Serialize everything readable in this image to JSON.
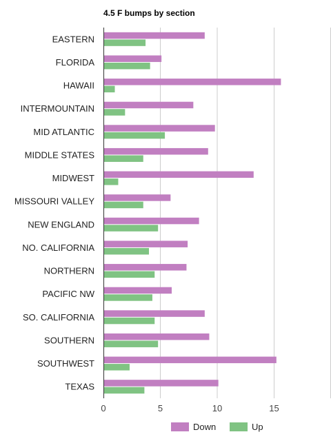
{
  "chart_data": {
    "type": "bar",
    "orientation": "horizontal",
    "title": "4.5 F bumps by section",
    "xlabel": "",
    "ylabel": "",
    "xlim": [
      0,
      20
    ],
    "xticks": [
      0,
      5,
      10,
      15
    ],
    "grid": true,
    "legend_position": "bottom",
    "categories": [
      "EASTERN",
      "FLORIDA",
      "HAWAII",
      "INTERMOUNTAIN",
      "MID ATLANTIC",
      "MIDDLE STATES",
      "MIDWEST",
      "MISSOURI VALLEY",
      "NEW ENGLAND",
      "NO. CALIFORNIA",
      "NORTHERN",
      "PACIFIC NW",
      "SO. CALIFORNIA",
      "SOUTHERN",
      "SOUTHWEST",
      "TEXAS"
    ],
    "series": [
      {
        "name": "Down",
        "color": "#c17fc1",
        "values": [
          8.9,
          5.1,
          15.6,
          7.9,
          9.8,
          9.2,
          13.2,
          5.9,
          8.4,
          7.4,
          7.3,
          6.0,
          8.9,
          9.3,
          15.2,
          10.1
        ]
      },
      {
        "name": "Up",
        "color": "#80c383",
        "values": [
          3.7,
          4.1,
          1.0,
          1.9,
          5.4,
          3.5,
          1.3,
          3.5,
          4.8,
          4.0,
          4.5,
          4.3,
          4.5,
          4.8,
          2.3,
          3.6
        ]
      }
    ]
  }
}
